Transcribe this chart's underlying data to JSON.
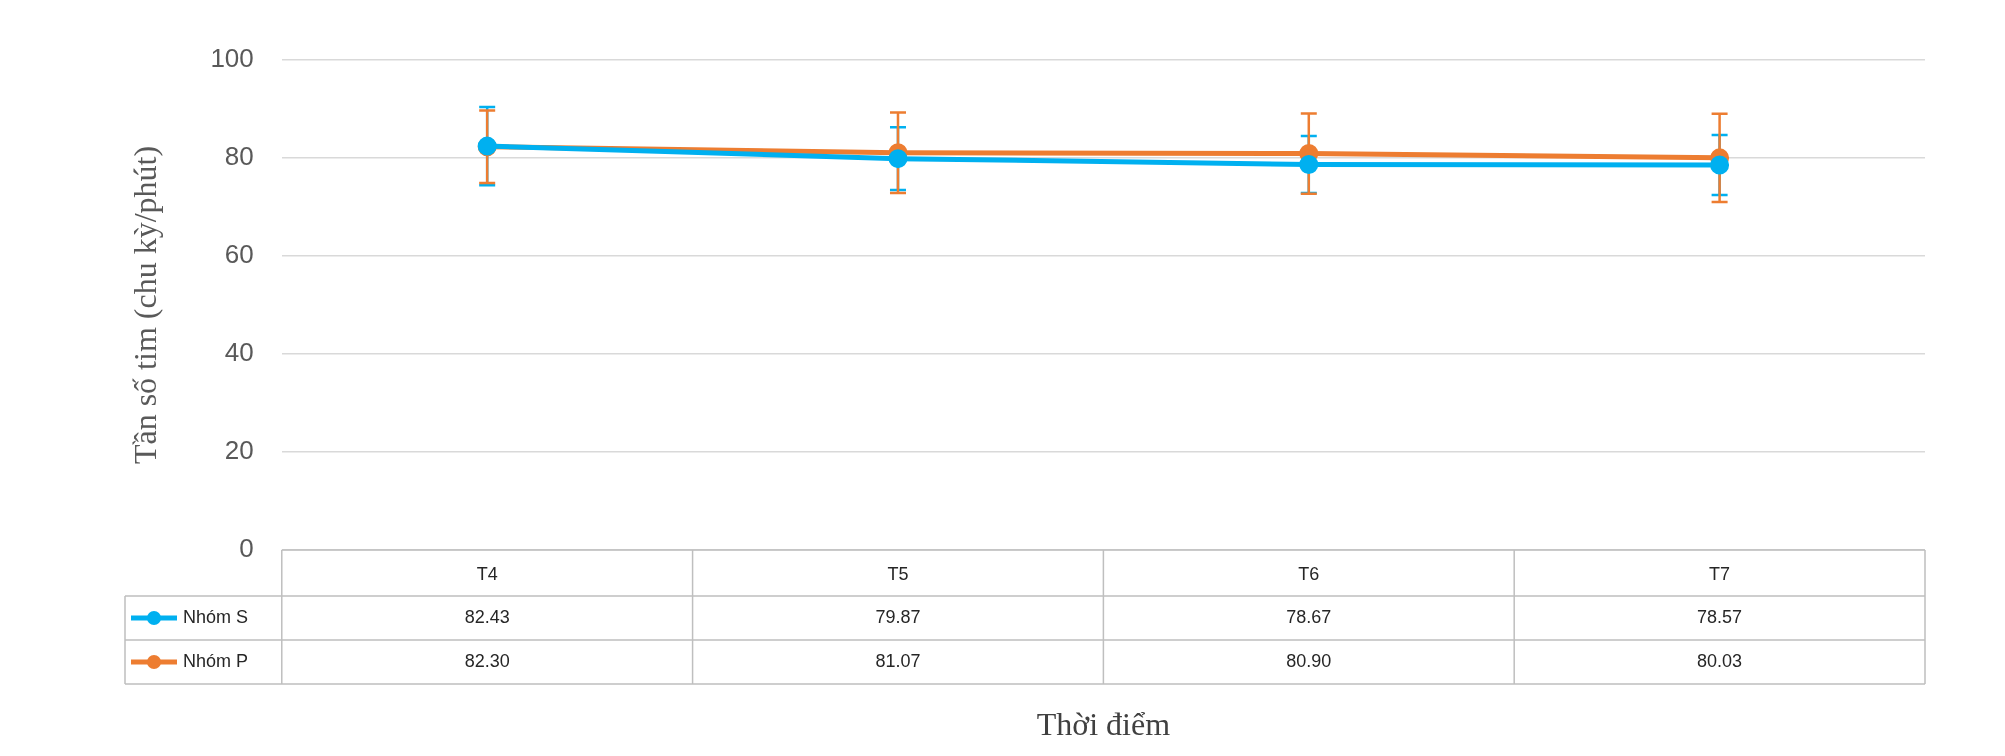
{
  "chart_data": {
    "type": "line",
    "xlabel": "Thời điểm",
    "ylabel": "Tần số tim (chu kỳ/phút)",
    "categories": [
      "T4",
      "T5",
      "T6",
      "T7"
    ],
    "ylim": [
      0,
      100
    ],
    "yticks": [
      0,
      20,
      40,
      60,
      80,
      100
    ],
    "grid": "y",
    "legend": "bottom",
    "marker": "circle",
    "series": [
      {
        "name": "Nhóm S",
        "color": "#00b0f0",
        "values": [
          82.43,
          79.87,
          78.67,
          78.57
        ],
        "errors": [
          8,
          6.4,
          5.8,
          6.1
        ],
        "value_labels": [
          "82.43",
          "79.87",
          "78.67",
          "78.57"
        ]
      },
      {
        "name": "Nhóm P",
        "color": "#ed7d31",
        "values": [
          82.3,
          81.07,
          80.9,
          80.03
        ],
        "errors": [
          7.4,
          8.2,
          8.2,
          9
        ],
        "value_labels": [
          "82.30",
          "81.07",
          "80.90",
          "80.03"
        ]
      }
    ]
  }
}
